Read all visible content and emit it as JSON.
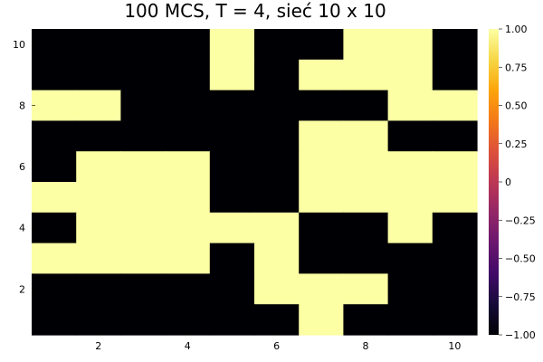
{
  "chart_data": {
    "type": "heatmap",
    "title": "100 MCS, T = 4, sieć 10 x 10",
    "xlabel": "",
    "ylabel": "",
    "x_range": [
      0.5,
      10.5
    ],
    "y_range": [
      0.5,
      10.5
    ],
    "x_ticks": [
      2,
      4,
      6,
      8,
      10
    ],
    "x_tick_labels": [
      "2",
      "4",
      "6",
      "8",
      "10"
    ],
    "y_ticks": [
      2,
      4,
      6,
      8,
      10
    ],
    "y_tick_labels": [
      "2",
      "4",
      "6",
      "8",
      "10"
    ],
    "colorbar": {
      "colormap": "inferno",
      "range": [
        -1.0,
        1.0
      ],
      "ticks": [
        -1.0,
        -0.75,
        -0.5,
        -0.25,
        0,
        0.25,
        0.5,
        0.75,
        1.0
      ],
      "tick_labels": [
        "−1.00",
        "−0.75",
        "−0.50",
        "−0.25",
        "0",
        "0.25",
        "0.50",
        "0.75",
        "1.00"
      ]
    },
    "grid": false,
    "rows_top_to_bottom_y": [
      10,
      9,
      8,
      7,
      6,
      5,
      4,
      3,
      2,
      1
    ],
    "values_rows_top_to_bottom": [
      [
        -1,
        -1,
        -1,
        -1,
        1,
        -1,
        -1,
        1,
        1,
        -1
      ],
      [
        -1,
        -1,
        -1,
        -1,
        1,
        -1,
        1,
        1,
        1,
        -1
      ],
      [
        1,
        1,
        -1,
        -1,
        -1,
        -1,
        -1,
        -1,
        1,
        1
      ],
      [
        -1,
        -1,
        -1,
        -1,
        -1,
        -1,
        1,
        1,
        -1,
        -1
      ],
      [
        -1,
        1,
        1,
        1,
        -1,
        -1,
        1,
        1,
        1,
        1
      ],
      [
        1,
        1,
        1,
        1,
        -1,
        -1,
        1,
        1,
        1,
        1
      ],
      [
        -1,
        1,
        1,
        1,
        1,
        1,
        -1,
        -1,
        1,
        -1
      ],
      [
        1,
        1,
        1,
        1,
        -1,
        1,
        -1,
        -1,
        -1,
        -1
      ],
      [
        -1,
        -1,
        -1,
        -1,
        -1,
        1,
        1,
        1,
        -1,
        -1
      ],
      [
        -1,
        -1,
        -1,
        -1,
        -1,
        -1,
        1,
        -1,
        -1,
        -1
      ]
    ],
    "colors": {
      "low": "#000004",
      "high": "#fcffa4"
    }
  }
}
